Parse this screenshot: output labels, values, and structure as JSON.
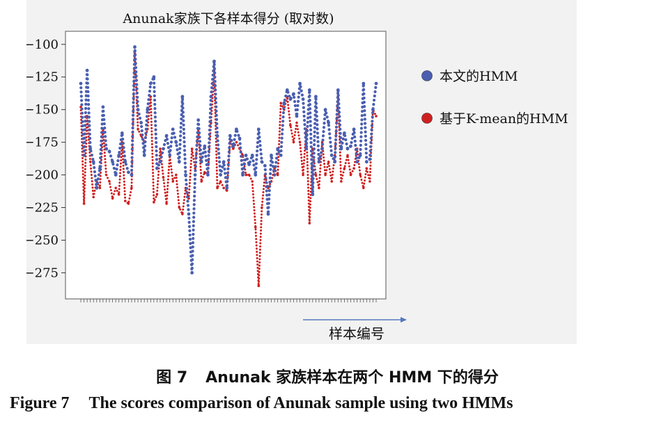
{
  "chart_data": {
    "type": "line",
    "title": "Anunak家族下各样本得分 (取对数)",
    "xlabel": "样本编号",
    "ylabel": "",
    "ylim": [
      -295,
      -90
    ],
    "yticks": [
      -100,
      -125,
      -150,
      -175,
      -200,
      -225,
      -250,
      -275
    ],
    "grid": false,
    "legend_position": "right",
    "series": [
      {
        "name": "本文的HMM",
        "color": "#4a5fb0",
        "values": [
          -130,
          -185,
          -120,
          -180,
          -190,
          -210,
          -195,
          -148,
          -180,
          -182,
          -190,
          -200,
          -185,
          -168,
          -190,
          -198,
          -200,
          -102,
          -150,
          -160,
          -185,
          -150,
          -130,
          -125,
          -195,
          -190,
          -180,
          -170,
          -185,
          -165,
          -175,
          -190,
          -140,
          -200,
          -230,
          -275,
          -200,
          -158,
          -190,
          -178,
          -200,
          -140,
          -113,
          -170,
          -200,
          -190,
          -210,
          -170,
          -178,
          -165,
          -172,
          -200,
          -185,
          -192,
          -185,
          -200,
          -165,
          -190,
          -193,
          -230,
          -185,
          -200,
          -180,
          -185,
          -145,
          -135,
          -142,
          -138,
          -155,
          -130,
          -142,
          -180,
          -135,
          -215,
          -140,
          -190,
          -180,
          -150,
          -160,
          -185,
          -190,
          -135,
          -180,
          -168,
          -180,
          -178,
          -165,
          -190,
          -185,
          -130,
          -190,
          -188,
          -150,
          -130
        ]
      },
      {
        "name": "基于K-mean的HMM",
        "color": "#cf2020",
        "values": [
          -148,
          -222,
          -155,
          -190,
          -217,
          -205,
          -210,
          -165,
          -200,
          -205,
          -218,
          -210,
          -215,
          -175,
          -220,
          -222,
          -210,
          -107,
          -165,
          -170,
          -175,
          -165,
          -140,
          -221,
          -215,
          -180,
          -202,
          -222,
          -185,
          -205,
          -200,
          -225,
          -230,
          -210,
          -218,
          -180,
          -195,
          -165,
          -205,
          -198,
          -200,
          -160,
          -120,
          -210,
          -205,
          -210,
          -212,
          -175,
          -180,
          -175,
          -180,
          -185,
          -200,
          -200,
          -205,
          -240,
          -285,
          -225,
          -200,
          -210,
          -205,
          -195,
          -200,
          -145,
          -150,
          -140,
          -162,
          -175,
          -160,
          -175,
          -200,
          -165,
          -237,
          -180,
          -200,
          -210,
          -175,
          -200,
          -190,
          -205,
          -185,
          -140,
          -205,
          -195,
          -185,
          -200,
          -195,
          -180,
          -200,
          -210,
          -195,
          -205,
          -150,
          -155
        ]
      }
    ]
  },
  "caption": {
    "cn_number": "图 7",
    "cn_text": "Anunak 家族样本在两个 HMM 下的得分",
    "en_number": "Figure 7",
    "en_text": "The scores comparison of Anunak sample using two HMMs"
  }
}
